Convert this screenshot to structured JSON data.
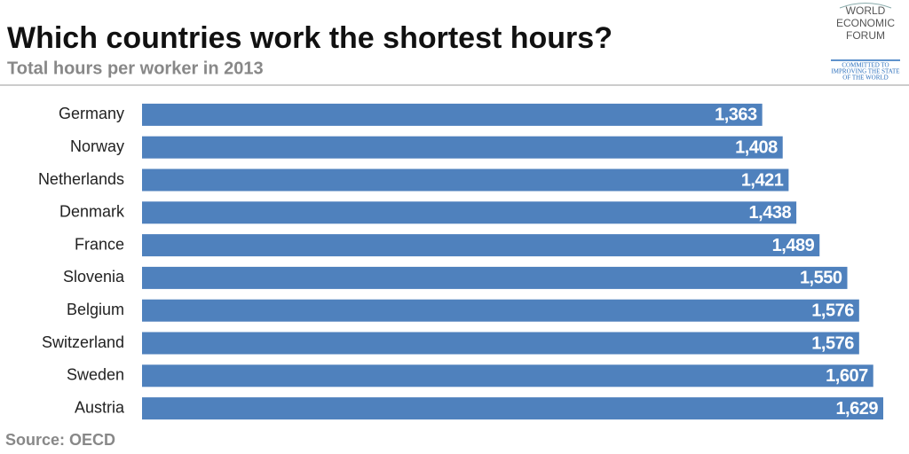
{
  "chart_data": {
    "type": "bar",
    "orientation": "horizontal",
    "title": "Which countries work the shortest hours?",
    "subtitle": "Total hours per worker in 2013",
    "source": "Source: OECD",
    "categories": [
      "Germany",
      "Norway",
      "Netherlands",
      "Denmark",
      "France",
      "Slovenia",
      "Belgium",
      "Switzerland",
      "Sweden",
      "Austria"
    ],
    "values": [
      1363,
      1408,
      1421,
      1438,
      1489,
      1550,
      1576,
      1576,
      1607,
      1629
    ],
    "value_labels": [
      "1,363",
      "1,408",
      "1,421",
      "1,438",
      "1,489",
      "1,550",
      "1,576",
      "1,576",
      "1,607",
      "1,629"
    ],
    "color": "#4f81bd"
  },
  "logo": {
    "name": [
      "WORLD",
      "ECONOMIC",
      "FORUM"
    ],
    "tagline": [
      "COMMITTED TO",
      "IMPROVING THE STATE",
      "OF THE WORLD"
    ]
  }
}
